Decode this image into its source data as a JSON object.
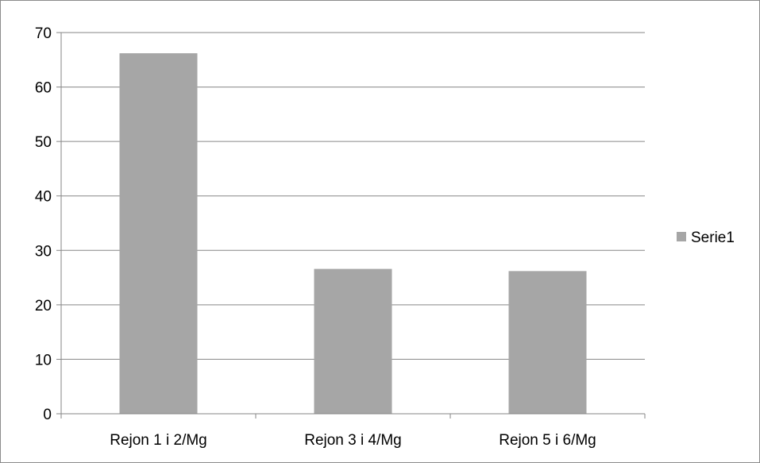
{
  "chart_data": {
    "type": "bar",
    "categories": [
      "Rejon 1 i 2/Mg",
      "Rejon 3 i 4/Mg",
      "Rejon 5 i 6/Mg"
    ],
    "series": [
      {
        "name": "Serie1",
        "values": [
          66.2,
          26.6,
          26.2
        ],
        "color": "#a6a6a6"
      }
    ],
    "title": "",
    "xlabel": "",
    "ylabel": "",
    "ylim": [
      0,
      70
    ],
    "yticks": [
      "0",
      "10",
      "20",
      "30",
      "40",
      "50",
      "60",
      "70"
    ],
    "grid": true,
    "legend": "right",
    "gridline_color": "#868686",
    "axis_color": "#868686"
  }
}
